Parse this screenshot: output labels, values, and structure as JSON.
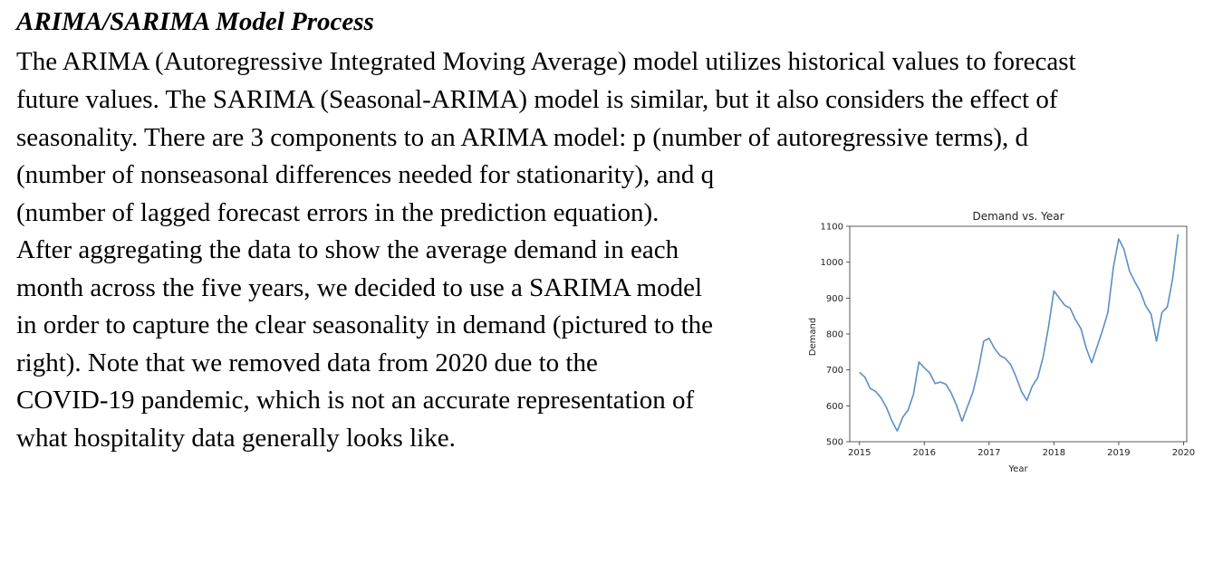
{
  "document": {
    "heading": "ARIMA/SARIMA Model Process",
    "lines": [
      "The ARIMA (Autoregressive Integrated Moving Average) model utilizes historical values to forecast",
      "future values. The SARIMA (Seasonal-ARIMA) model is similar, but it also considers the effect of",
      "seasonality. There are 3 components to an ARIMA model: p (number of autoregressive terms), d",
      "(number of nonseasonal differences needed for stationarity), and q",
      "(number of lagged forecast errors in the prediction equation).",
      "After aggregating the data to show the average demand in each",
      "month across the five years, we decided to use a SARIMA model",
      "in order to capture the clear seasonality in demand (pictured to the",
      "right). Note that we removed data from 2020 due to the",
      "COVID-19 pandemic, which is not an accurate representation of",
      "what hospitality data generally looks like."
    ]
  },
  "chart_data": {
    "type": "line",
    "title": "Demand vs. Year",
    "xlabel": "Year",
    "ylabel": "Demand",
    "xlim": [
      2014.85,
      2020.05
    ],
    "ylim": [
      500,
      1100
    ],
    "xticks": [
      2015,
      2016,
      2017,
      2018,
      2019,
      2020
    ],
    "yticks": [
      500,
      600,
      700,
      800,
      900,
      1000,
      1100
    ],
    "grid": false,
    "color": "#5b8fc4",
    "x": [
      2015.0,
      2015.083,
      2015.167,
      2015.25,
      2015.333,
      2015.417,
      2015.5,
      2015.583,
      2015.667,
      2015.75,
      2015.833,
      2015.917,
      2016.0,
      2016.083,
      2016.167,
      2016.25,
      2016.333,
      2016.417,
      2016.5,
      2016.583,
      2016.667,
      2016.75,
      2016.833,
      2016.917,
      2017.0,
      2017.083,
      2017.167,
      2017.25,
      2017.333,
      2017.417,
      2017.5,
      2017.583,
      2017.667,
      2017.75,
      2017.833,
      2017.917,
      2018.0,
      2018.083,
      2018.167,
      2018.25,
      2018.333,
      2018.417,
      2018.5,
      2018.583,
      2018.667,
      2018.75,
      2018.833,
      2018.917,
      2019.0,
      2019.083,
      2019.167,
      2019.25,
      2019.333,
      2019.417,
      2019.5,
      2019.583,
      2019.667,
      2019.75,
      2019.833,
      2019.917
    ],
    "values": [
      693,
      680,
      648,
      640,
      622,
      595,
      558,
      530,
      568,
      588,
      632,
      722,
      706,
      692,
      662,
      666,
      660,
      635,
      600,
      557,
      598,
      638,
      700,
      780,
      788,
      760,
      740,
      732,
      715,
      680,
      640,
      615,
      655,
      678,
      735,
      820,
      920,
      900,
      880,
      872,
      840,
      815,
      760,
      720,
      765,
      810,
      860,
      985,
      1065,
      1035,
      975,
      945,
      918,
      878,
      855,
      780,
      860,
      875,
      955,
      1078
    ]
  }
}
